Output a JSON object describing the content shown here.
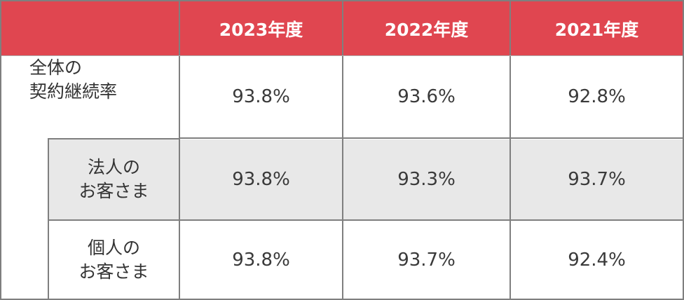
{
  "header": {
    "corner": "",
    "years": [
      "2023年度",
      "2022年度",
      "2021年度"
    ],
    "color": "#e04650"
  },
  "rows": {
    "total": {
      "label_line1": "全体の",
      "label_line2": "契約継続率",
      "values": [
        "93.8%",
        "93.6%",
        "92.8%"
      ]
    },
    "corporate": {
      "label_line1": "法人の",
      "label_line2": "お客さま",
      "values": [
        "93.8%",
        "93.3%",
        "93.7%"
      ]
    },
    "individual": {
      "label_line1": "個人の",
      "label_line2": "お客さま",
      "values": [
        "93.8%",
        "93.7%",
        "92.4%"
      ]
    }
  }
}
